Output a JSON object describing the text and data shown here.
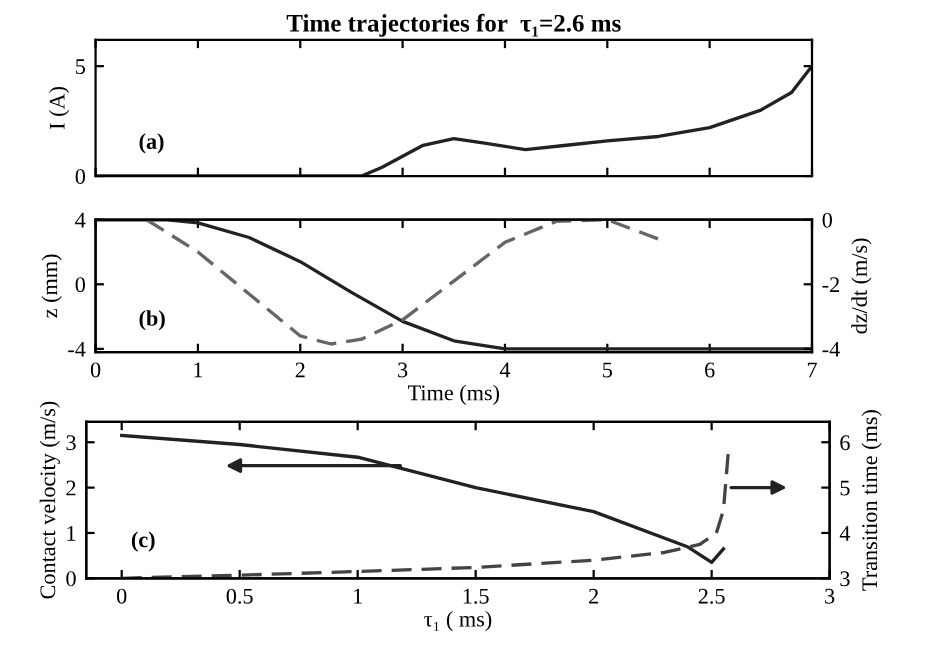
{
  "chart_data": [
    {
      "type": "line",
      "title": "Time trajectories for  τ₁=2.6 ms",
      "ylabel": "I (A)",
      "annotations": [
        "(a)"
      ],
      "xlim": [
        0,
        7
      ],
      "xticks": [
        0,
        1,
        2,
        3,
        4,
        5,
        6,
        7
      ],
      "ylim": [
        0,
        6.2
      ],
      "yticks": [
        0,
        5
      ],
      "tick_labels": "y",
      "grid": false,
      "series": [
        {
          "color": "#222222",
          "line_style": "solid",
          "x": [
            0,
            2.6,
            2.8,
            3.0,
            3.2,
            3.5,
            3.8,
            4.2,
            4.6,
            5,
            5.5,
            6,
            6.5,
            6.8,
            7
          ],
          "values": [
            0,
            0,
            0.4,
            0.9,
            1.4,
            1.7,
            1.5,
            1.2,
            1.4,
            1.6,
            1.8,
            2.2,
            3.0,
            3.8,
            5
          ]
        }
      ]
    },
    {
      "type": "line",
      "xlabel": "Time (ms)",
      "ylabel": "z (mm)",
      "y2label": "dz/dt (m/s)",
      "annotations": [
        "(b)"
      ],
      "xlim": [
        0,
        7
      ],
      "xticks": [
        0,
        1,
        2,
        3,
        4,
        5,
        6,
        7
      ],
      "ylim": [
        -4.2,
        4
      ],
      "yticks": [
        -4,
        0,
        4
      ],
      "y2lim": [
        -4.1,
        0
      ],
      "y2ticks": [
        -4,
        -2,
        0
      ],
      "grid": false,
      "series": [
        {
          "color": "#222222",
          "line_style": "solid",
          "x": [
            0,
            0.5,
            0.7,
            1,
            1.5,
            2,
            2.5,
            3,
            3.5,
            4,
            4.5,
            7
          ],
          "values": [
            4,
            4,
            4,
            3.8,
            2.9,
            1.4,
            -0.5,
            -2.3,
            -3.5,
            -4,
            -4,
            -4
          ]
        },
        {
          "color": "#666666",
          "line_style": "dashed",
          "axis": "y2",
          "x": [
            0.5,
            1,
            1.5,
            2,
            2.3,
            2.6,
            3,
            3.5,
            4,
            4.5,
            5,
            5.5
          ],
          "values": [
            0,
            -1.0,
            -2.3,
            -3.6,
            -3.85,
            -3.7,
            -3.1,
            -1.9,
            -0.7,
            -0.05,
            0,
            -0.6
          ]
        }
      ]
    },
    {
      "type": "line",
      "xlabel": "τ₁ ( ms)",
      "ylabel": "Contact velocity (m/s)",
      "y2label": "Transition time (ms)",
      "annotations": [
        "(c)"
      ],
      "xlim": [
        -0.15,
        3
      ],
      "xticks": [
        0,
        0.5,
        1,
        1.5,
        2,
        2.5,
        3
      ],
      "ylim": [
        0,
        3.45
      ],
      "yticks": [
        0,
        1,
        2,
        3
      ],
      "y2lim": [
        3,
        6.45
      ],
      "y2ticks": [
        3,
        4,
        5,
        6
      ],
      "grid": false,
      "series": [
        {
          "color": "#222222",
          "line_style": "solid",
          "x": [
            0,
            0.5,
            1,
            1.5,
            2,
            2.4,
            2.5,
            2.55
          ],
          "values": [
            3.15,
            2.95,
            2.67,
            2.0,
            1.47,
            0.69,
            0.35,
            0.65
          ]
        },
        {
          "color": "#444444",
          "line_style": "dashed",
          "axis": "y2",
          "x": [
            0,
            0.5,
            1,
            1.5,
            2,
            2.3,
            2.45,
            2.52,
            2.55,
            2.57
          ],
          "values": [
            3.0,
            3.07,
            3.15,
            3.24,
            3.4,
            3.57,
            3.75,
            4.0,
            4.5,
            5.75
          ]
        }
      ]
    }
  ]
}
